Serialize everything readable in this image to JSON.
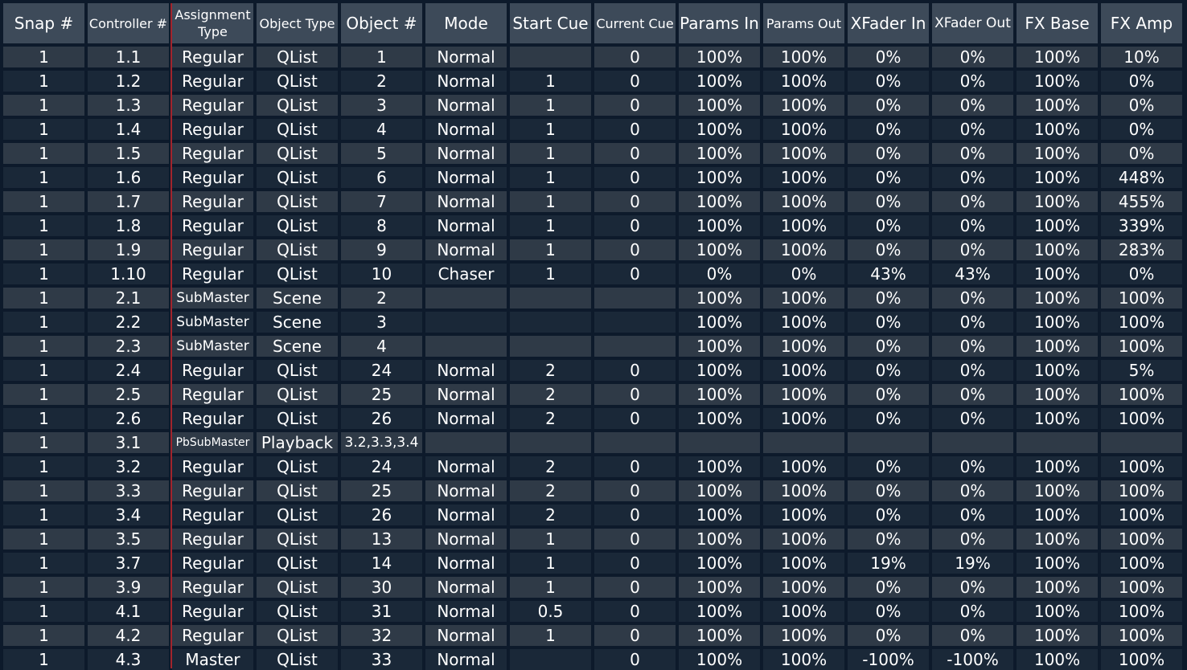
{
  "headers": [
    "Snap #",
    "Controller #",
    "Assignment Type",
    "Object Type",
    "Object #",
    "Mode",
    "Start Cue",
    "Current Cue",
    "Params In",
    "Params Out",
    "XFader In",
    "XFader Out",
    "FX Base",
    "FX Amp"
  ],
  "rows": [
    [
      "1",
      "1.1",
      "Regular",
      "QList",
      "1",
      "Normal",
      "",
      "0",
      "100%",
      "100%",
      "0%",
      "0%",
      "100%",
      "10%"
    ],
    [
      "1",
      "1.2",
      "Regular",
      "QList",
      "2",
      "Normal",
      "1",
      "0",
      "100%",
      "100%",
      "0%",
      "0%",
      "100%",
      "0%"
    ],
    [
      "1",
      "1.3",
      "Regular",
      "QList",
      "3",
      "Normal",
      "1",
      "0",
      "100%",
      "100%",
      "0%",
      "0%",
      "100%",
      "0%"
    ],
    [
      "1",
      "1.4",
      "Regular",
      "QList",
      "4",
      "Normal",
      "1",
      "0",
      "100%",
      "100%",
      "0%",
      "0%",
      "100%",
      "0%"
    ],
    [
      "1",
      "1.5",
      "Regular",
      "QList",
      "5",
      "Normal",
      "1",
      "0",
      "100%",
      "100%",
      "0%",
      "0%",
      "100%",
      "0%"
    ],
    [
      "1",
      "1.6",
      "Regular",
      "QList",
      "6",
      "Normal",
      "1",
      "0",
      "100%",
      "100%",
      "0%",
      "0%",
      "100%",
      "448%"
    ],
    [
      "1",
      "1.7",
      "Regular",
      "QList",
      "7",
      "Normal",
      "1",
      "0",
      "100%",
      "100%",
      "0%",
      "0%",
      "100%",
      "455%"
    ],
    [
      "1",
      "1.8",
      "Regular",
      "QList",
      "8",
      "Normal",
      "1",
      "0",
      "100%",
      "100%",
      "0%",
      "0%",
      "100%",
      "339%"
    ],
    [
      "1",
      "1.9",
      "Regular",
      "QList",
      "9",
      "Normal",
      "1",
      "0",
      "100%",
      "100%",
      "0%",
      "0%",
      "100%",
      "283%"
    ],
    [
      "1",
      "1.10",
      "Regular",
      "QList",
      "10",
      "Chaser",
      "1",
      "0",
      "0%",
      "0%",
      "43%",
      "43%",
      "100%",
      "0%"
    ],
    [
      "1",
      "2.1",
      "SubMaster",
      "Scene",
      "2",
      "",
      "",
      "",
      "100%",
      "100%",
      "0%",
      "0%",
      "100%",
      "100%"
    ],
    [
      "1",
      "2.2",
      "SubMaster",
      "Scene",
      "3",
      "",
      "",
      "",
      "100%",
      "100%",
      "0%",
      "0%",
      "100%",
      "100%"
    ],
    [
      "1",
      "2.3",
      "SubMaster",
      "Scene",
      "4",
      "",
      "",
      "",
      "100%",
      "100%",
      "0%",
      "0%",
      "100%",
      "100%"
    ],
    [
      "1",
      "2.4",
      "Regular",
      "QList",
      "24",
      "Normal",
      "2",
      "0",
      "100%",
      "100%",
      "0%",
      "0%",
      "100%",
      "5%"
    ],
    [
      "1",
      "2.5",
      "Regular",
      "QList",
      "25",
      "Normal",
      "2",
      "0",
      "100%",
      "100%",
      "0%",
      "0%",
      "100%",
      "100%"
    ],
    [
      "1",
      "2.6",
      "Regular",
      "QList",
      "26",
      "Normal",
      "2",
      "0",
      "100%",
      "100%",
      "0%",
      "0%",
      "100%",
      "100%"
    ],
    [
      "1",
      "3.1",
      "PbSubMaster",
      "Playback",
      "3.2,3.3,3.4",
      "",
      "",
      "",
      "",
      "",
      "",
      "",
      "",
      ""
    ],
    [
      "1",
      "3.2",
      "Regular",
      "QList",
      "24",
      "Normal",
      "2",
      "0",
      "100%",
      "100%",
      "0%",
      "0%",
      "100%",
      "100%"
    ],
    [
      "1",
      "3.3",
      "Regular",
      "QList",
      "25",
      "Normal",
      "2",
      "0",
      "100%",
      "100%",
      "0%",
      "0%",
      "100%",
      "100%"
    ],
    [
      "1",
      "3.4",
      "Regular",
      "QList",
      "26",
      "Normal",
      "2",
      "0",
      "100%",
      "100%",
      "0%",
      "0%",
      "100%",
      "100%"
    ],
    [
      "1",
      "3.5",
      "Regular",
      "QList",
      "13",
      "Normal",
      "1",
      "0",
      "100%",
      "100%",
      "0%",
      "0%",
      "100%",
      "100%"
    ],
    [
      "1",
      "3.7",
      "Regular",
      "QList",
      "14",
      "Normal",
      "1",
      "0",
      "100%",
      "100%",
      "19%",
      "19%",
      "100%",
      "100%"
    ],
    [
      "1",
      "3.9",
      "Regular",
      "QList",
      "30",
      "Normal",
      "1",
      "0",
      "100%",
      "100%",
      "0%",
      "0%",
      "100%",
      "100%"
    ],
    [
      "1",
      "4.1",
      "Regular",
      "QList",
      "31",
      "Normal",
      "0.5",
      "0",
      "100%",
      "100%",
      "0%",
      "0%",
      "100%",
      "100%"
    ],
    [
      "1",
      "4.2",
      "Regular",
      "QList",
      "32",
      "Normal",
      "1",
      "0",
      "100%",
      "100%",
      "0%",
      "0%",
      "100%",
      "100%"
    ],
    [
      "1",
      "4.3",
      "Master",
      "QList",
      "33",
      "Normal",
      "",
      "0",
      "100%",
      "100%",
      "-100%",
      "-100%",
      "100%",
      "100%"
    ]
  ],
  "colors": {
    "background": "#0d1a2b",
    "header_cell": "#3d4a59",
    "row_light": "#2f3a47",
    "row_dark": "#1a2838",
    "divider": "#a2242c"
  }
}
